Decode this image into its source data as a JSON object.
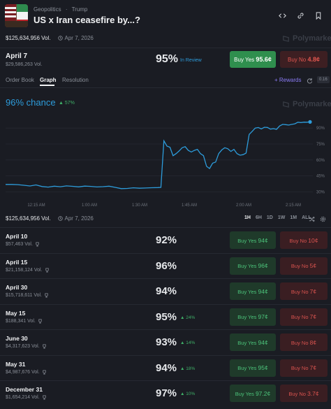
{
  "header": {
    "breadcrumbs": [
      "Geopolitics",
      "·",
      "Trump"
    ],
    "title": "US x Iran ceasefire by...?",
    "total_volume": "$125,634,956 Vol.",
    "end_date": "Apr 7, 2026",
    "watermark": "Polymarket"
  },
  "main_market": {
    "date": "April 7",
    "volume": "$29,586,263 Vol.",
    "chance": "95%",
    "status": "In Review",
    "buy_yes_label": "Buy Yes",
    "buy_yes_price": "95.6¢",
    "buy_no_label": "Buy No",
    "buy_no_price": "4.8¢"
  },
  "tabs": {
    "items": [
      "Order Book",
      "Graph",
      "Resolution"
    ],
    "active": "Graph",
    "rewards": "+ Rewards",
    "spread_badge": "0.16"
  },
  "chart_data": {
    "type": "line",
    "title": "96% chance",
    "delta": "▲ 57%",
    "x_tick_labels": [
      "12:15 AM",
      "1:00 AM",
      "1:30 AM",
      "1:45 AM",
      "2:00 AM",
      "2:15 AM"
    ],
    "y_tick_labels": [
      "90%",
      "75%",
      "60%",
      "45%",
      "30%"
    ],
    "ylim": [
      25,
      100
    ],
    "grid": true,
    "series": [
      {
        "color": "#2d9cdb",
        "x": [
          0,
          2,
          4,
          6,
          8,
          10,
          12,
          14,
          16,
          18,
          20,
          22,
          24,
          26,
          28,
          30,
          32,
          34,
          36,
          38,
          40,
          42,
          44,
          46,
          48,
          50,
          51,
          52,
          53,
          54,
          55,
          56,
          57,
          58,
          59,
          60,
          61,
          62,
          63,
          64,
          65,
          66,
          67,
          68,
          69,
          70,
          71,
          72,
          73,
          74,
          75,
          76,
          77,
          78,
          79,
          80,
          81,
          82,
          83,
          84,
          85,
          86,
          87,
          88,
          89,
          90,
          91,
          92,
          93,
          94,
          95,
          96,
          97,
          98,
          99,
          100
        ],
        "values": [
          37,
          37,
          36.8,
          36.2,
          35.5,
          36.5,
          35,
          34.5,
          35.3,
          34.8,
          35.6,
          35.2,
          34.7,
          35.4,
          35.1,
          34.6,
          34.9,
          35.3,
          34.2,
          33,
          33.2,
          33.8,
          33.4,
          33.6,
          33.9,
          34,
          34.2,
          78,
          73,
          72,
          64,
          66,
          68.5,
          71.5,
          72.5,
          69,
          67.5,
          69,
          70,
          66,
          64,
          54,
          52,
          57,
          58,
          66,
          69.5,
          71.5,
          70.5,
          68,
          70,
          66,
          64.5,
          65,
          66.5,
          84,
          87,
          90,
          90.5,
          89.2,
          90.8,
          90.6,
          89,
          89.5,
          88.8,
          92,
          93.5,
          93.2,
          92.8,
          93.5,
          94,
          95.5,
          95.2,
          95.6,
          95.5,
          95.8
        ]
      }
    ]
  },
  "controls": {
    "total_volume": "$125,634,956 Vol.",
    "end_date": "Apr 7, 2026",
    "ranges": [
      "1H",
      "6H",
      "1D",
      "1W",
      "1M",
      "ALL"
    ],
    "active_range": "1H"
  },
  "outcomes": [
    {
      "date": "April 10",
      "volume": "$57,463 Vol.",
      "chance": "92%",
      "delta": "",
      "yes": "94¢",
      "no": "10¢"
    },
    {
      "date": "April 15",
      "volume": "$21,158,124 Vol.",
      "chance": "96%",
      "delta": "",
      "yes": "96¢",
      "no": "5¢"
    },
    {
      "date": "April 30",
      "volume": "$15,718,611 Vol.",
      "chance": "94%",
      "delta": "",
      "yes": "94¢",
      "no": "7¢"
    },
    {
      "date": "May 15",
      "volume": "$188,341 Vol.",
      "chance": "95%",
      "delta": "▲ 24%",
      "yes": "97¢",
      "no": "7¢"
    },
    {
      "date": "June 30",
      "volume": "$4,317,623 Vol.",
      "chance": "93%",
      "delta": "▲ 14%",
      "yes": "94¢",
      "no": "8¢"
    },
    {
      "date": "May 31",
      "volume": "$4,987,676 Vol.",
      "chance": "94%",
      "delta": "▲ 18%",
      "yes": "95¢",
      "no": "7¢"
    },
    {
      "date": "December 31",
      "volume": "$1,654,214 Vol.",
      "chance": "97%",
      "delta": "▲ 10%",
      "yes": "97.2¢",
      "no": "3.7¢"
    }
  ],
  "labels": {
    "buy_yes": "Buy Yes",
    "buy_no": "Buy No"
  },
  "colors": {
    "accent": "#2d9cdb",
    "yes": "#2f8f4e",
    "no": "#e0564f",
    "positive": "#3fb068"
  }
}
